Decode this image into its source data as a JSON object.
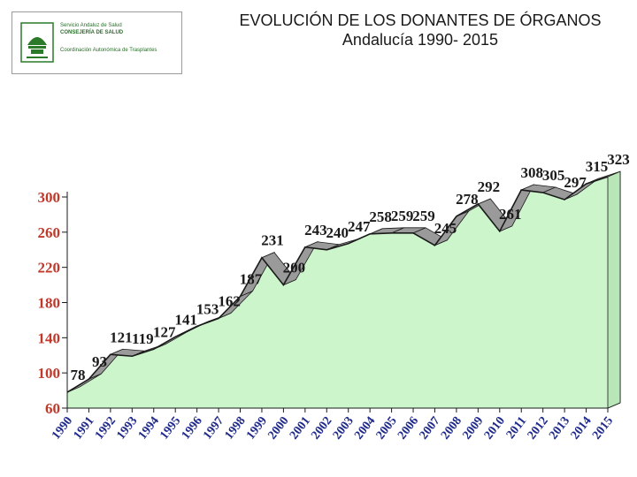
{
  "header": {
    "logo": {
      "line1": "Servicio Andaluz de Salud",
      "line2": "CONSEJERÍA DE SALUD",
      "line3": "Coordinación Autonómica de Trasplantes"
    },
    "title": "EVOLUCIÓN DE LOS DONANTES DE ÓRGANOS",
    "subtitle": "Andalucía 1990- 2015"
  },
  "colors": {
    "fill": "#ccf5cc",
    "line": "#1a1a1a",
    "ytick": "#c0392b",
    "xtick": "#1f2a8a",
    "ribbon": "#9a9a9a"
  },
  "chart_data": {
    "type": "area",
    "title": "EVOLUCIÓN DE LOS DONANTES DE ÓRGANOS",
    "subtitle": "Andalucía 1990- 2015",
    "xlabel": "",
    "ylabel": "",
    "categories": [
      "1990",
      "1991",
      "1992",
      "1993",
      "1994",
      "1995",
      "1996",
      "1997",
      "1998",
      "1999",
      "2000",
      "2001",
      "2002",
      "2003",
      "2004",
      "2005",
      "2006",
      "2007",
      "2008",
      "2009",
      "2010",
      "2011",
      "2012",
      "2013",
      "2014",
      "2015"
    ],
    "values": [
      78,
      93,
      121,
      119,
      127,
      141,
      153,
      162,
      187,
      231,
      200,
      243,
      240,
      247,
      258,
      259,
      259,
      245,
      278,
      292,
      261,
      308,
      305,
      297,
      315,
      323
    ],
    "ylim": [
      60,
      300
    ],
    "yticks": [
      60,
      100,
      140,
      180,
      220,
      260,
      300
    ],
    "grid": false,
    "legend": "none"
  }
}
